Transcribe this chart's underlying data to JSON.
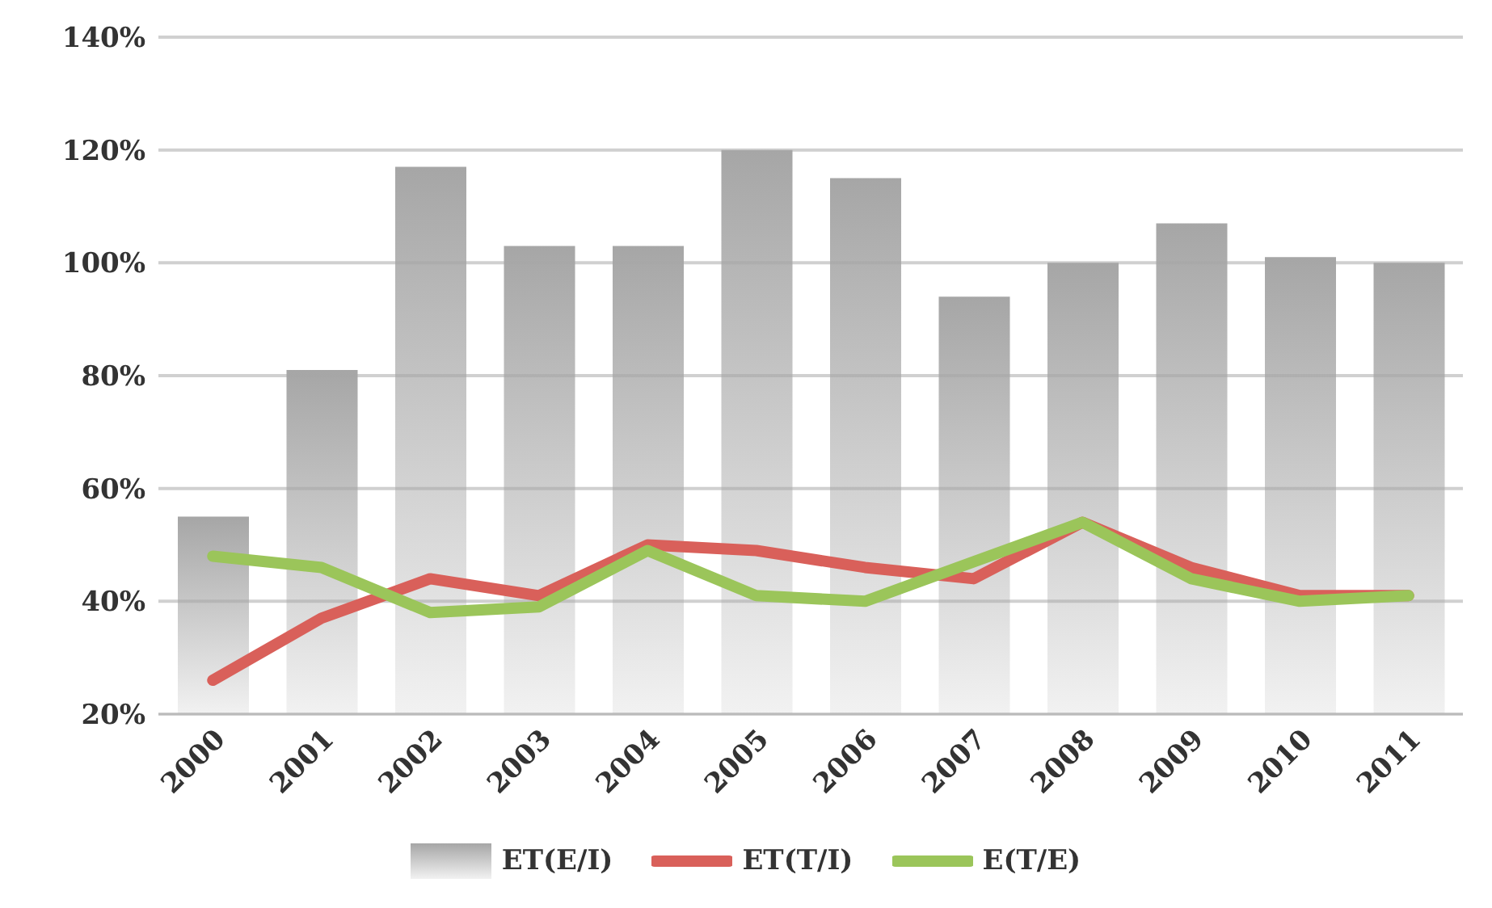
{
  "chart_data": {
    "type": "bar",
    "categories": [
      "2000",
      "2001",
      "2002",
      "2003",
      "2004",
      "2005",
      "2006",
      "2007",
      "2008",
      "2009",
      "2010",
      "2011"
    ],
    "series": [
      {
        "name": "ET(E/I)",
        "color": "#a6a6a6",
        "values": [
          55,
          81,
          117,
          103,
          103,
          120,
          115,
          94,
          100,
          107,
          101,
          100
        ]
      },
      {
        "name": "ET(T/I)",
        "type": "line",
        "color": "#d9605a",
        "values": [
          26,
          37,
          44,
          41,
          50,
          49,
          46,
          44,
          54,
          46,
          41,
          41
        ]
      },
      {
        "name": "E(T/E)",
        "type": "line",
        "color": "#9bc55a",
        "values": [
          48,
          46,
          38,
          39,
          49,
          41,
          40,
          47,
          54,
          44,
          40,
          41
        ]
      }
    ],
    "ylim": [
      20,
      140
    ],
    "yticks": [
      {
        "value": 20,
        "label": "20%"
      },
      {
        "value": 40,
        "label": "40%"
      },
      {
        "value": 60,
        "label": "60%"
      },
      {
        "value": 80,
        "label": "80%"
      },
      {
        "value": 100,
        "label": "100%"
      },
      {
        "value": 120,
        "label": "120%"
      },
      {
        "value": 140,
        "label": "140%"
      }
    ],
    "grid": "y",
    "legend": "bottom",
    "marker": "none",
    "line_style": "solid"
  }
}
